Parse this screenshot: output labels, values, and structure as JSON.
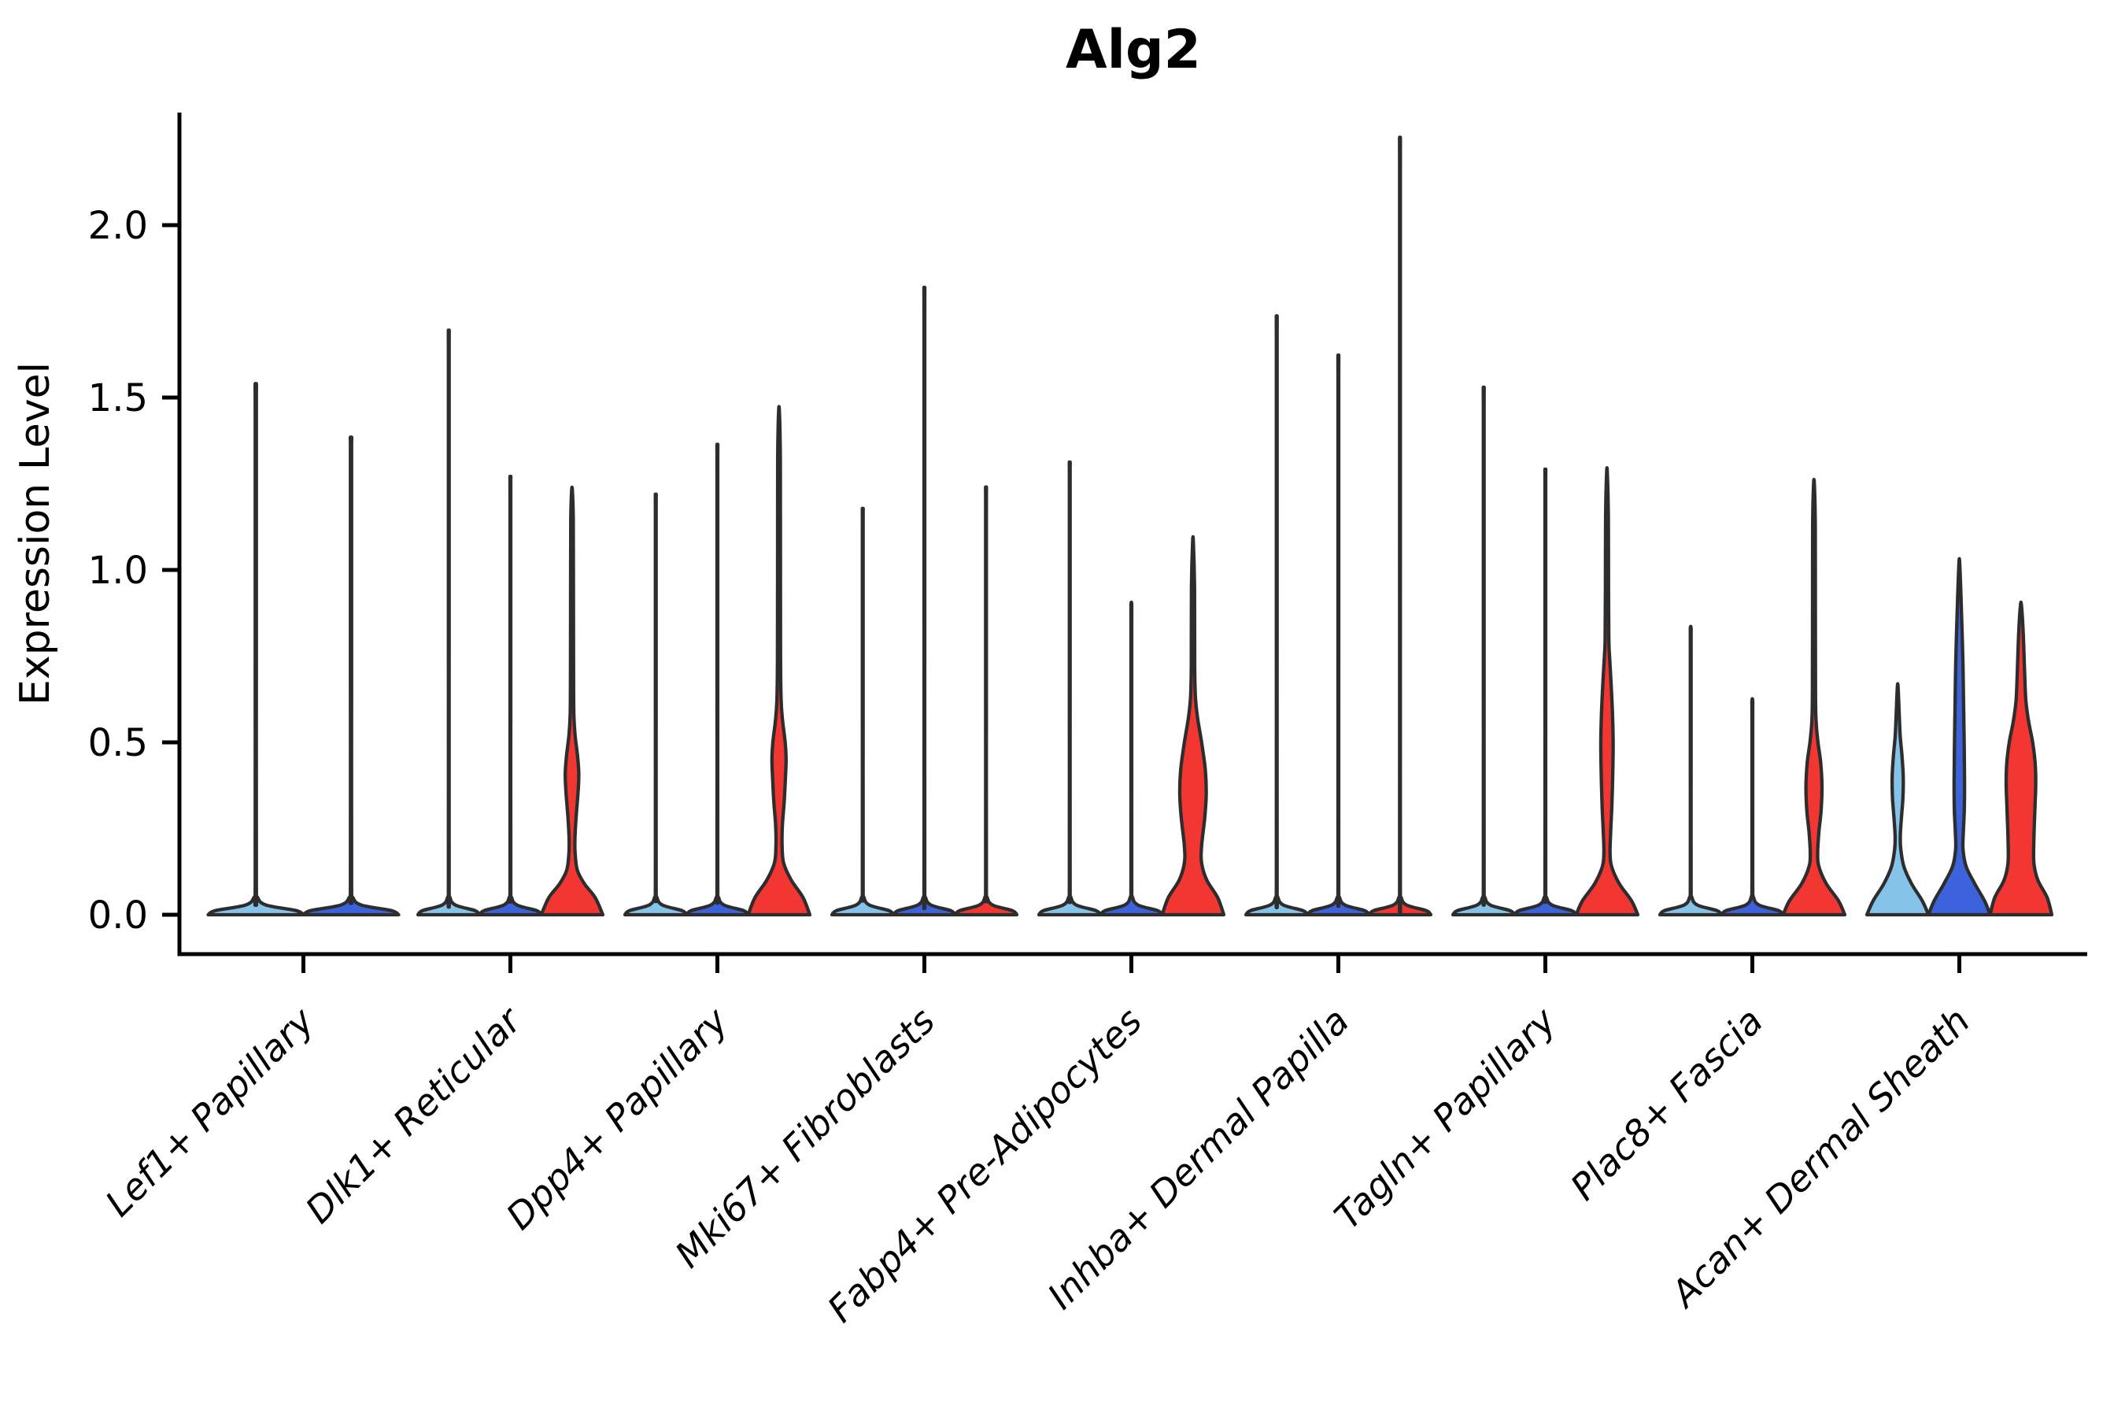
{
  "title": "Alg2",
  "chart_data": {
    "type": "violin",
    "title": "Alg2",
    "xlabel": "",
    "ylabel": "Expression Level",
    "ylim": [
      -0.05,
      2.33
    ],
    "grid": false,
    "legend": "none",
    "ytick_labels": [
      "0.0",
      "0.5",
      "1.0",
      "1.5",
      "2.0"
    ],
    "ytick_values": [
      0.0,
      0.5,
      1.0,
      1.5,
      2.0
    ],
    "palette": {
      "split1": "#85C3E9",
      "split2": "#3C63DC",
      "split3": "#F23732",
      "outline": "#2D2D2D",
      "axis": "#000000"
    },
    "categories": [
      "Lef1+ Papillary",
      "Dlk1+ Reticular",
      "Dpp4+ Papillary",
      "Mki67+ Fibroblasts",
      "Fabp4+ Pre-Adipocytes",
      "Inhba+ Dermal Papilla",
      "Tagln+ Papillary",
      "Plac8+ Fascia",
      "Acan+ Dermal Sheath"
    ],
    "groups": [
      {
        "category": "Lef1+ Papillary",
        "violins": [
          {
            "split": 1,
            "color": "split1",
            "shape": "thin",
            "max": 1.52
          },
          {
            "split": 2,
            "color": "split2",
            "shape": "thin",
            "max": 1.37
          }
        ]
      },
      {
        "category": "Dlk1+ Reticular",
        "violins": [
          {
            "split": 1,
            "color": "split1",
            "shape": "thin",
            "max": 1.67
          },
          {
            "split": 2,
            "color": "split2",
            "shape": "thin",
            "max": 1.26
          },
          {
            "split": 3,
            "color": "split3",
            "shape": "filled",
            "max": 1.23,
            "profile": [
              [
                0,
                1.0
              ],
              [
                0.05,
                0.75
              ],
              [
                0.09,
                0.4
              ],
              [
                0.13,
                0.17
              ],
              [
                0.18,
                0.1
              ],
              [
                0.22,
                0.095
              ],
              [
                0.28,
                0.13
              ],
              [
                0.36,
                0.2
              ],
              [
                0.41,
                0.22
              ],
              [
                0.46,
                0.18
              ],
              [
                0.52,
                0.1
              ],
              [
                0.58,
                0.06
              ],
              [
                0.7,
                0.05
              ],
              [
                1.0,
                0.045
              ],
              [
                1.15,
                0.04
              ],
              [
                1.23,
                0.012
              ]
            ]
          }
        ]
      },
      {
        "category": "Dpp4+ Papillary",
        "violins": [
          {
            "split": 1,
            "color": "split1",
            "shape": "thin",
            "max": 1.21
          },
          {
            "split": 2,
            "color": "split2",
            "shape": "thin",
            "max": 1.35
          },
          {
            "split": 3,
            "color": "split3",
            "shape": "filled",
            "max": 1.46,
            "profile": [
              [
                0,
                1.0
              ],
              [
                0.05,
                0.78
              ],
              [
                0.1,
                0.4
              ],
              [
                0.15,
                0.15
              ],
              [
                0.2,
                0.1
              ],
              [
                0.26,
                0.11
              ],
              [
                0.33,
                0.17
              ],
              [
                0.4,
                0.21
              ],
              [
                0.45,
                0.23
              ],
              [
                0.5,
                0.2
              ],
              [
                0.56,
                0.12
              ],
              [
                0.62,
                0.07
              ],
              [
                0.75,
                0.05
              ],
              [
                1.2,
                0.045
              ],
              [
                1.35,
                0.04
              ],
              [
                1.46,
                0.012
              ]
            ]
          }
        ]
      },
      {
        "category": "Mki67+ Fibroblasts",
        "violins": [
          {
            "split": 1,
            "color": "split1",
            "shape": "thin",
            "max": 1.17
          },
          {
            "split": 2,
            "color": "split2",
            "shape": "thin",
            "max": 1.79
          },
          {
            "split": 3,
            "color": "split3",
            "shape": "thin",
            "max": 1.23
          }
        ]
      },
      {
        "category": "Fabp4+ Pre-Adipocytes",
        "violins": [
          {
            "split": 1,
            "color": "split1",
            "shape": "thin",
            "max": 1.3
          },
          {
            "split": 2,
            "color": "split2",
            "shape": "thin",
            "max": 0.9
          },
          {
            "split": 3,
            "color": "split3",
            "shape": "filled",
            "max": 1.08,
            "profile": [
              [
                0,
                1.0
              ],
              [
                0.05,
                0.8
              ],
              [
                0.1,
                0.45
              ],
              [
                0.15,
                0.28
              ],
              [
                0.2,
                0.28
              ],
              [
                0.28,
                0.38
              ],
              [
                0.35,
                0.43
              ],
              [
                0.42,
                0.4
              ],
              [
                0.5,
                0.28
              ],
              [
                0.57,
                0.15
              ],
              [
                0.63,
                0.08
              ],
              [
                0.72,
                0.055
              ],
              [
                0.95,
                0.05
              ],
              [
                1.08,
                0.012
              ]
            ]
          }
        ]
      },
      {
        "category": "Inhba+ Dermal Papilla",
        "violins": [
          {
            "split": 1,
            "color": "split1",
            "shape": "thin",
            "max": 1.71
          },
          {
            "split": 2,
            "color": "split2",
            "shape": "thin",
            "max": 1.6
          },
          {
            "split": 3,
            "color": "split3",
            "shape": "thin",
            "max": 2.21
          }
        ]
      },
      {
        "category": "Tagln+ Papillary",
        "violins": [
          {
            "split": 1,
            "color": "split1",
            "shape": "thin",
            "max": 1.51
          },
          {
            "split": 2,
            "color": "split2",
            "shape": "thin",
            "max": 1.28
          },
          {
            "split": 3,
            "color": "split3",
            "shape": "filled",
            "max": 1.28,
            "profile": [
              [
                0,
                1.0
              ],
              [
                0.04,
                0.8
              ],
              [
                0.09,
                0.4
              ],
              [
                0.14,
                0.15
              ],
              [
                0.18,
                0.1
              ],
              [
                0.24,
                0.12
              ],
              [
                0.32,
                0.16
              ],
              [
                0.42,
                0.19
              ],
              [
                0.5,
                0.2
              ],
              [
                0.58,
                0.18
              ],
              [
                0.66,
                0.14
              ],
              [
                0.74,
                0.09
              ],
              [
                0.8,
                0.06
              ],
              [
                0.95,
                0.05
              ],
              [
                1.15,
                0.045
              ],
              [
                1.28,
                0.012
              ]
            ]
          }
        ]
      },
      {
        "category": "Plac8+ Fascia",
        "violins": [
          {
            "split": 1,
            "color": "split1",
            "shape": "thin",
            "max": 0.83
          },
          {
            "split": 2,
            "color": "split2",
            "shape": "thin",
            "max": 0.62
          },
          {
            "split": 3,
            "color": "split3",
            "shape": "filled",
            "max": 1.25,
            "profile": [
              [
                0,
                1.0
              ],
              [
                0.04,
                0.8
              ],
              [
                0.09,
                0.4
              ],
              [
                0.14,
                0.16
              ],
              [
                0.18,
                0.12
              ],
              [
                0.24,
                0.16
              ],
              [
                0.3,
                0.23
              ],
              [
                0.37,
                0.26
              ],
              [
                0.44,
                0.22
              ],
              [
                0.5,
                0.13
              ],
              [
                0.56,
                0.07
              ],
              [
                0.65,
                0.05
              ],
              [
                1.0,
                0.045
              ],
              [
                1.15,
                0.04
              ],
              [
                1.25,
                0.012
              ]
            ]
          }
        ]
      },
      {
        "category": "Acan+ Dermal Sheath",
        "violins": [
          {
            "split": 1,
            "color": "split1",
            "shape": "filled",
            "max": 0.66,
            "profile": [
              [
                0,
                1.0
              ],
              [
                0.04,
                0.8
              ],
              [
                0.09,
                0.45
              ],
              [
                0.14,
                0.2
              ],
              [
                0.19,
                0.1
              ],
              [
                0.23,
                0.085
              ],
              [
                0.28,
                0.12
              ],
              [
                0.34,
                0.17
              ],
              [
                0.4,
                0.18
              ],
              [
                0.46,
                0.14
              ],
              [
                0.52,
                0.08
              ],
              [
                0.58,
                0.05
              ],
              [
                0.66,
                0.012
              ]
            ]
          },
          {
            "split": 2,
            "color": "split2",
            "shape": "filled",
            "max": 1.02,
            "profile": [
              [
                0,
                1.0
              ],
              [
                0.04,
                0.82
              ],
              [
                0.09,
                0.5
              ],
              [
                0.14,
                0.22
              ],
              [
                0.19,
                0.12
              ],
              [
                0.24,
                0.13
              ],
              [
                0.3,
                0.16
              ],
              [
                0.38,
                0.17
              ],
              [
                0.48,
                0.16
              ],
              [
                0.6,
                0.14
              ],
              [
                0.72,
                0.12
              ],
              [
                0.82,
                0.09
              ],
              [
                0.92,
                0.055
              ],
              [
                1.02,
                0.012
              ]
            ]
          },
          {
            "split": 3,
            "color": "split3",
            "shape": "filled",
            "max": 0.9,
            "profile": [
              [
                0,
                1.0
              ],
              [
                0.05,
                0.85
              ],
              [
                0.1,
                0.55
              ],
              [
                0.15,
                0.42
              ],
              [
                0.22,
                0.42
              ],
              [
                0.3,
                0.45
              ],
              [
                0.38,
                0.48
              ],
              [
                0.44,
                0.46
              ],
              [
                0.5,
                0.38
              ],
              [
                0.56,
                0.25
              ],
              [
                0.62,
                0.16
              ],
              [
                0.7,
                0.12
              ],
              [
                0.78,
                0.09
              ],
              [
                0.85,
                0.055
              ],
              [
                0.9,
                0.012
              ]
            ]
          }
        ]
      }
    ]
  }
}
